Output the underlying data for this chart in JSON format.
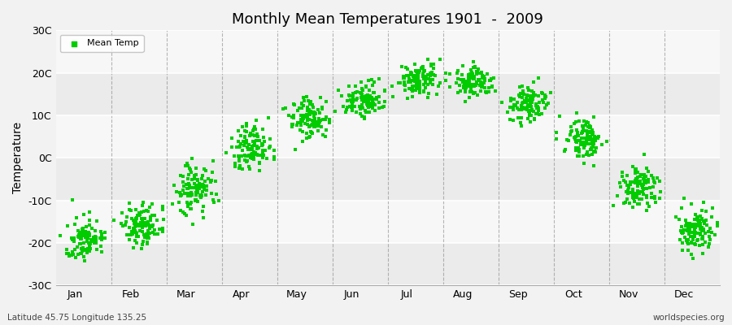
{
  "title": "Monthly Mean Temperatures 1901  -  2009",
  "ylabel": "Temperature",
  "subtitle_left": "Latitude 45.75 Longitude 135.25",
  "subtitle_right": "worldspecies.org",
  "ylim": [
    -30,
    30
  ],
  "yticks": [
    -30,
    -20,
    -10,
    0,
    10,
    20,
    30
  ],
  "ytick_labels": [
    "-30C",
    "-20C",
    "-10C",
    "0C",
    "10C",
    "20C",
    "30C"
  ],
  "month_names": [
    "Jan",
    "Feb",
    "Mar",
    "Apr",
    "May",
    "Jun",
    "Jul",
    "Aug",
    "Sep",
    "Oct",
    "Nov",
    "Dec"
  ],
  "monthly_mean_temps": [
    -19.5,
    -16.0,
    -7.5,
    2.0,
    9.0,
    13.5,
    18.0,
    17.5,
    12.5,
    4.5,
    -7.0,
    -17.0
  ],
  "monthly_std": [
    2.5,
    2.5,
    3.0,
    3.0,
    2.5,
    2.0,
    2.0,
    2.0,
    2.0,
    2.5,
    2.5,
    2.5
  ],
  "n_years": 109,
  "marker_color": "#00cc00",
  "marker_size": 5,
  "background_color": "#f2f2f2",
  "band_colors_even": "#ebebeb",
  "band_colors_odd": "#f7f7f7",
  "legend_label": "Mean Temp",
  "grid_color": "#888888",
  "seed": 42
}
